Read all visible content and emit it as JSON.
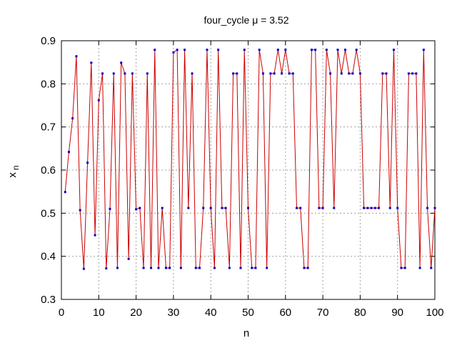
{
  "chart_data": {
    "type": "line",
    "title": "four_cycle  μ = 3.52",
    "xlabel": "n",
    "ylabel_main": "x",
    "ylabel_sub": "n",
    "xlim": [
      0,
      100
    ],
    "ylim": [
      0.3,
      0.9
    ],
    "xticks": [
      0,
      10,
      20,
      30,
      40,
      50,
      60,
      70,
      80,
      90,
      100
    ],
    "yticks": [
      0.3,
      0.4,
      0.5,
      0.6,
      0.7,
      0.8,
      0.9
    ],
    "grid": true,
    "line_color": "#cc0000",
    "marker_color": "#0000cc",
    "series": [
      {
        "x": [
          1,
          2,
          3,
          4,
          5,
          6,
          7,
          8,
          9,
          10,
          11,
          12,
          13,
          14,
          15,
          16,
          17,
          18,
          19,
          20,
          21,
          22,
          23,
          24,
          25,
          26,
          27,
          28,
          29,
          30,
          31,
          32,
          33,
          34,
          35,
          36,
          37,
          38,
          39,
          40,
          41,
          42,
          43,
          44,
          45,
          46,
          47,
          48,
          49,
          50,
          51,
          52,
          53,
          54,
          55,
          56,
          57,
          58,
          59,
          60,
          61,
          62,
          63,
          64,
          65,
          66,
          67,
          68,
          69,
          70,
          71,
          72,
          73,
          74,
          75,
          76,
          77,
          78,
          79,
          80,
          81,
          82,
          83,
          84,
          85,
          86,
          87,
          88,
          89,
          90,
          91,
          92,
          93,
          94,
          95,
          96,
          97,
          98,
          99,
          100
        ],
        "y": [
          0.549,
          0.642,
          0.72,
          0.864,
          0.507,
          0.371,
          0.617,
          0.849,
          0.449,
          0.762,
          0.824,
          0.372,
          0.51,
          0.824,
          0.373,
          0.849,
          0.824,
          0.394,
          0.824,
          0.509,
          0.512,
          0.373,
          0.824,
          0.373,
          0.879,
          0.373,
          0.512,
          0.373,
          0.373,
          0.873,
          0.879,
          0.373,
          0.879,
          0.512,
          0.824,
          0.373,
          0.373,
          0.512,
          0.879,
          0.512,
          0.373,
          0.879,
          0.512,
          0.512,
          0.373,
          0.824,
          0.824,
          0.373,
          0.879,
          0.512,
          0.373,
          0.373,
          0.879,
          0.824,
          0.373,
          0.824,
          0.824,
          0.879,
          0.824,
          0.879,
          0.824,
          0.824,
          0.512,
          0.512,
          0.373,
          0.373,
          0.879,
          0.879,
          0.512,
          0.512,
          0.879,
          0.824,
          0.512,
          0.879,
          0.824,
          0.879,
          0.824,
          0.824,
          0.879,
          0.824,
          0.512,
          0.512,
          0.512,
          0.512,
          0.512,
          0.824,
          0.824,
          0.512,
          0.879,
          0.512,
          0.373,
          0.373,
          0.824,
          0.824,
          0.824,
          0.373,
          0.879,
          0.512,
          0.373,
          0.512
        ]
      }
    ]
  }
}
